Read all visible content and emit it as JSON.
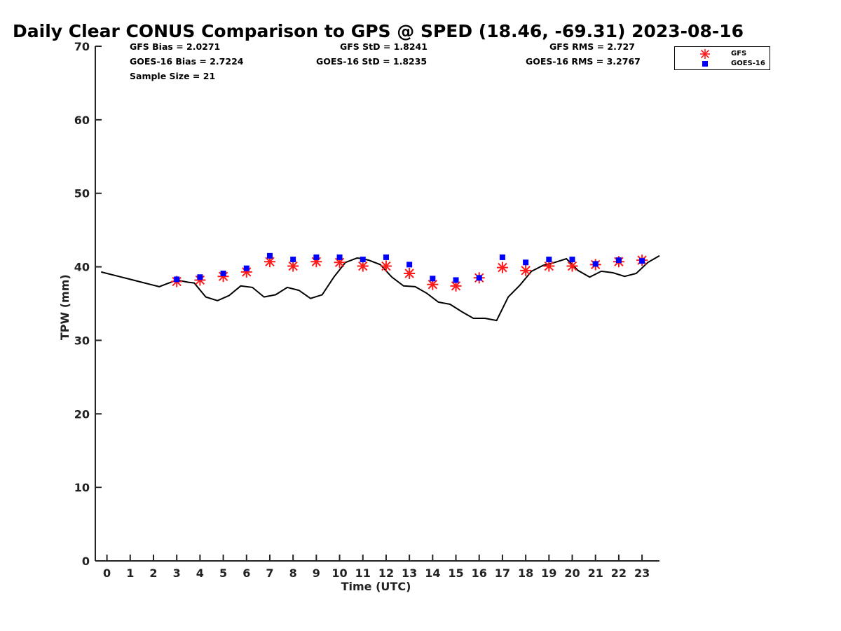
{
  "chart_data": {
    "type": "line",
    "title": "Daily Clear CONUS Comparison to GPS @ SPED (18.46, -69.31) 2023-08-16",
    "xlabel": "Time (UTC)",
    "ylabel": "TPW (mm)",
    "xlim": [
      -0.5,
      23.75
    ],
    "ylim": [
      0,
      70
    ],
    "xticks": [
      0,
      1,
      2,
      3,
      4,
      5,
      6,
      7,
      8,
      9,
      10,
      11,
      12,
      13,
      14,
      15,
      16,
      17,
      18,
      19,
      20,
      21,
      22,
      23
    ],
    "yticks": [
      0,
      10,
      20,
      30,
      40,
      50,
      60,
      70
    ],
    "grid": false,
    "legend_position": "top-right outside",
    "stats": {
      "gfs_bias": "GFS Bias = 2.0271",
      "goes_bias": "GOES-16 Bias = 2.7224",
      "sample_size": "Sample Size = 21",
      "gfs_std": "GFS StD = 1.8241",
      "goes_std": "GOES-16 StD = 1.8235",
      "gfs_rms": "GFS RMS = 2.727",
      "goes_rms": "GOES-16 RMS = 3.2767"
    },
    "series": [
      {
        "type": "line",
        "color": "#000000",
        "x": [
          -0.25,
          0,
          0.5,
          1,
          1.5,
          2,
          2.25,
          2.5,
          3,
          3.5,
          3.75,
          4.25,
          4.75,
          5.25,
          5.75,
          6.25,
          6.75,
          7.25,
          7.75,
          8.25,
          8.75,
          9.25,
          9.75,
          10.25,
          10.75,
          11,
          11.25,
          11.75,
          12.25,
          12.75,
          13.25,
          13.75,
          14.25,
          14.75,
          15.25,
          15.75,
          16.25,
          16.75,
          17.25,
          17.75,
          18.25,
          18.75,
          19.25,
          19.75,
          20.25,
          20.75,
          21.25,
          21.75,
          22.25,
          22.75,
          23.25,
          23.75
        ],
        "values": [
          39.3,
          39.1,
          38.7,
          38.3,
          37.9,
          37.5,
          37.3,
          37.6,
          38.2,
          37.9,
          37.8,
          35.9,
          35.4,
          36.1,
          37.4,
          37.2,
          35.9,
          36.2,
          37.2,
          36.8,
          35.7,
          36.2,
          38.6,
          40.6,
          41.2,
          41.1,
          40.9,
          40.3,
          38.6,
          37.4,
          37.3,
          36.4,
          35.2,
          34.9,
          33.9,
          33.0,
          33.0,
          32.7,
          35.9,
          37.5,
          39.4,
          40.2,
          40.6,
          41.1,
          39.5,
          38.6,
          39.4,
          39.2,
          38.7,
          39.1,
          40.6,
          41.5
        ]
      },
      {
        "name": "GFS",
        "type": "scatter",
        "marker": "asterisk",
        "color": "#ff1a1a",
        "x": [
          3,
          4,
          5,
          6,
          7,
          8,
          9,
          10,
          11,
          12,
          13,
          14,
          15,
          16,
          17,
          18,
          19,
          20,
          21,
          22,
          23
        ],
        "values": [
          38.0,
          38.2,
          38.7,
          39.3,
          40.7,
          40.1,
          40.7,
          40.6,
          40.1,
          40.1,
          39.1,
          37.6,
          37.4,
          38.5,
          39.9,
          39.5,
          40.1,
          40.1,
          40.3,
          40.7,
          40.9
        ]
      },
      {
        "name": "GOES-16",
        "type": "scatter",
        "marker": "square",
        "color": "#0000ff",
        "x": [
          3,
          4,
          5,
          6,
          7,
          8,
          9,
          10,
          11,
          12,
          13,
          14,
          15,
          16,
          17,
          18,
          19,
          20,
          21,
          22,
          23
        ],
        "values": [
          38.3,
          38.6,
          39.1,
          39.8,
          41.5,
          41.0,
          41.3,
          41.3,
          41.0,
          41.3,
          40.3,
          38.4,
          38.2,
          38.5,
          41.3,
          40.6,
          41.0,
          41.0,
          40.4,
          40.9,
          40.8
        ]
      }
    ]
  }
}
